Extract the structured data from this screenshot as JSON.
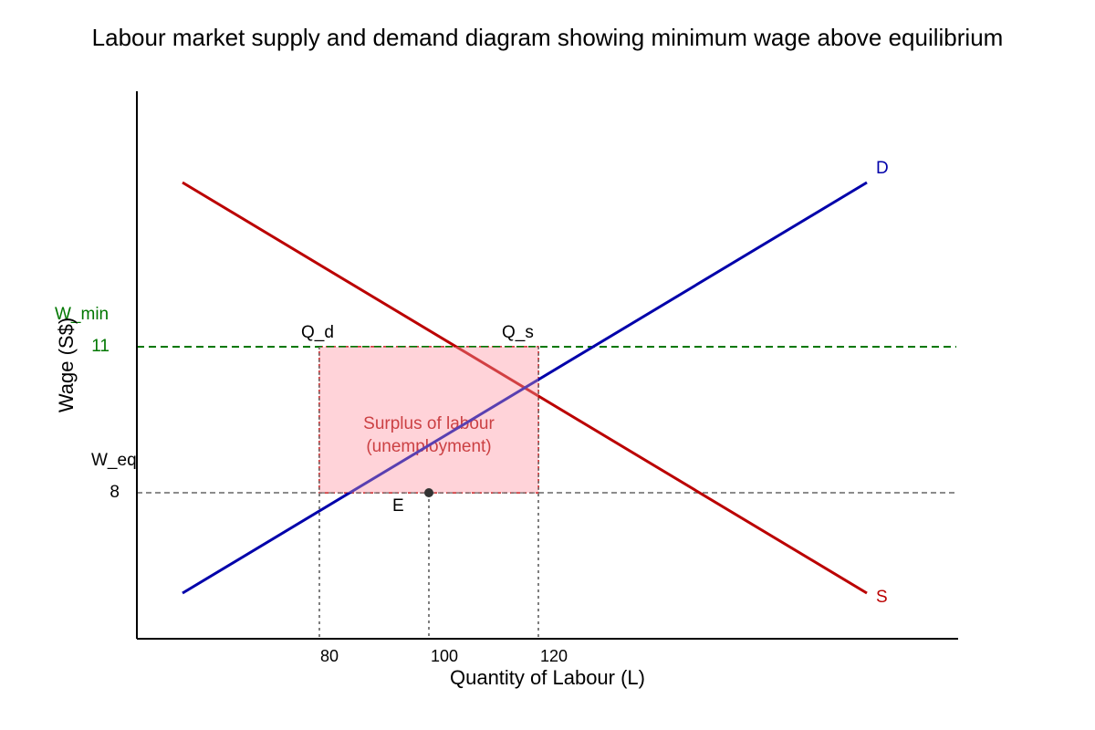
{
  "title": "Labour market supply and demand diagram showing minimum wage above equilibrium",
  "axes": {
    "x_label": "Quantity of Labour (L)",
    "y_label": "Wage (S$)",
    "x_ticks": [
      "80",
      "100",
      "120"
    ],
    "y_ticks": [
      "8",
      "11"
    ]
  },
  "curves": {
    "demand": {
      "label": "D",
      "color": "#0000aa"
    },
    "supply": {
      "label": "S",
      "color": "#bb0000"
    }
  },
  "wage_lines": {
    "min": {
      "label": "W_min",
      "value": "11",
      "color": "#007700"
    },
    "eq": {
      "label": "W_eq",
      "value": "8",
      "color": "#555555"
    }
  },
  "quantities": {
    "qd": "Q_d",
    "qs": "Q_s"
  },
  "equilibrium": {
    "label": "E"
  },
  "surplus": {
    "line1": "Surplus of labour",
    "line2": "(unemployment)",
    "fill": "#ffb6c1",
    "stroke": "#bb0000"
  }
}
